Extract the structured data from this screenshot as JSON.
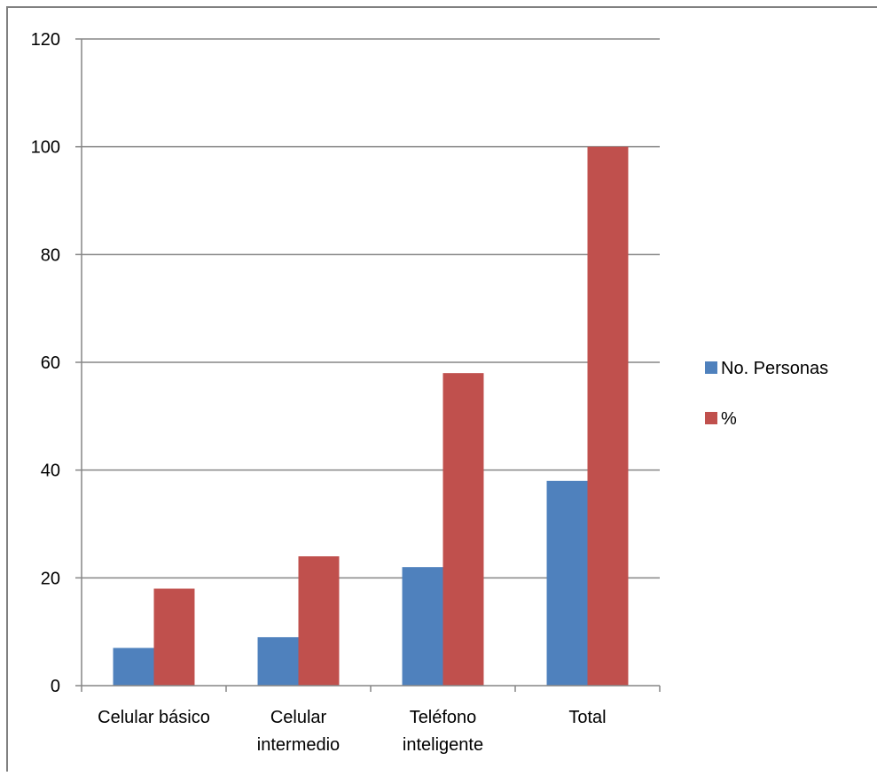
{
  "chart_data": {
    "type": "bar",
    "categories": [
      [
        "Celular básico"
      ],
      [
        "Celular",
        "intermedio"
      ],
      [
        "Teléfono",
        "inteligente"
      ],
      [
        "Total"
      ]
    ],
    "series": [
      {
        "name": "No. Personas",
        "values": [
          7,
          9,
          22,
          38
        ],
        "color": "#4f81bd"
      },
      {
        "name": "%",
        "values": [
          18,
          24,
          58,
          100
        ],
        "color": "#c0504d"
      }
    ],
    "ylim": [
      0,
      120
    ],
    "yticks": [
      0,
      20,
      40,
      60,
      80,
      100,
      120
    ],
    "grid": true,
    "legend_position": "right",
    "title": "",
    "xlabel": "",
    "ylabel": ""
  }
}
